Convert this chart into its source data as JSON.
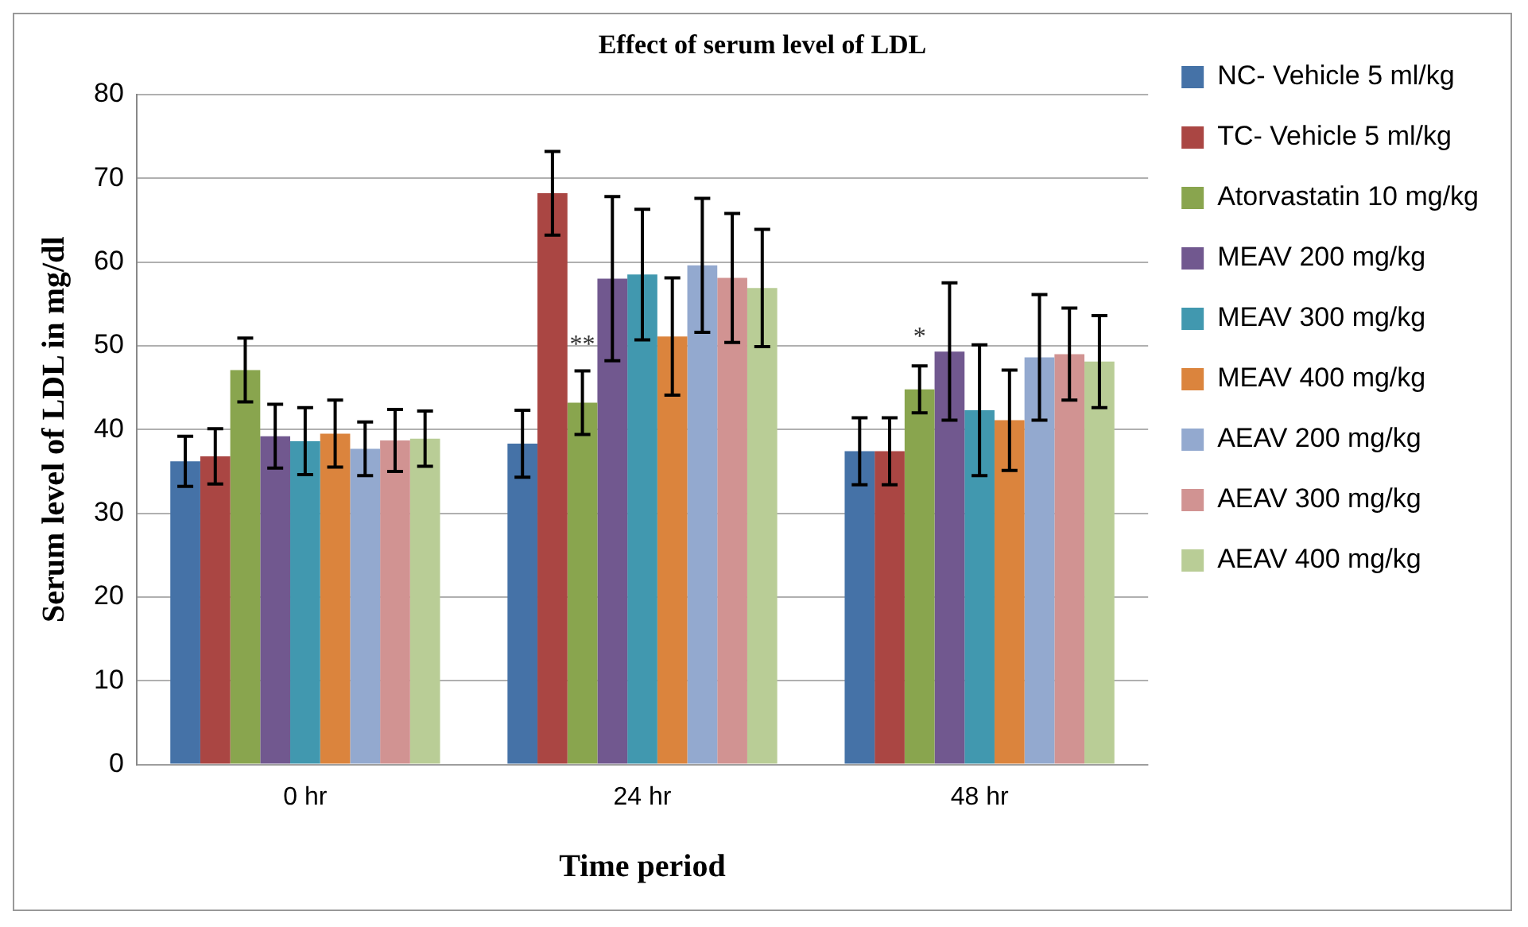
{
  "chart_data": {
    "type": "bar",
    "title": "Effect of serum level of LDL",
    "xlabel": "Time period",
    "ylabel": "Serum level of LDL in mg/dl",
    "categories": [
      "0 hr",
      "24 hr",
      "48 hr"
    ],
    "series": [
      {
        "name": "NC- Vehicle 5 ml/kg",
        "color": "#4572a7",
        "values": [
          36.2,
          38.3,
          37.4
        ],
        "errors": [
          3,
          4,
          4
        ]
      },
      {
        "name": "TC- Vehicle 5 ml/kg",
        "color": "#aa4643",
        "values": [
          36.8,
          68.2,
          37.4
        ],
        "errors": [
          3.3,
          5,
          4
        ]
      },
      {
        "name": "Atorvastatin 10 mg/kg",
        "color": "#89a54e",
        "values": [
          47.1,
          43.2,
          44.8
        ],
        "errors": [
          3.8,
          3.8,
          2.8
        ]
      },
      {
        "name": "MEAV 200 mg/kg",
        "color": "#71588f",
        "values": [
          39.2,
          58,
          49.3
        ],
        "errors": [
          3.8,
          9.8,
          8.2
        ]
      },
      {
        "name": "MEAV 300 mg/kg",
        "color": "#4198af",
        "values": [
          38.6,
          58.5,
          42.3
        ],
        "errors": [
          4,
          7.8,
          7.8
        ]
      },
      {
        "name": "MEAV 400 mg/kg",
        "color": "#db843d",
        "values": [
          39.5,
          51.1,
          41.1
        ],
        "errors": [
          4,
          7,
          6
        ]
      },
      {
        "name": "AEAV 200 mg/kg",
        "color": "#93a9cf",
        "values": [
          37.7,
          59.6,
          48.6
        ],
        "errors": [
          3.2,
          8,
          7.5
        ]
      },
      {
        "name": "AEAV 300 mg/kg",
        "color": "#d19392",
        "values": [
          38.7,
          58.1,
          49
        ],
        "errors": [
          3.7,
          7.7,
          5.5
        ]
      },
      {
        "name": "AEAV 400 mg/kg",
        "color": "#b9cd96",
        "values": [
          38.9,
          56.9,
          48.1
        ],
        "errors": [
          3.3,
          7,
          5.5
        ]
      }
    ],
    "annotations": [
      {
        "text": "**",
        "x": "24 hr",
        "y": 50
      },
      {
        "text": "*",
        "x": "48 hr",
        "y": 51
      }
    ],
    "ylim": [
      0,
      80
    ],
    "yticks": [
      0,
      10,
      20,
      30,
      40,
      50,
      60,
      70,
      80
    ],
    "grid": "y",
    "legend": "right"
  }
}
